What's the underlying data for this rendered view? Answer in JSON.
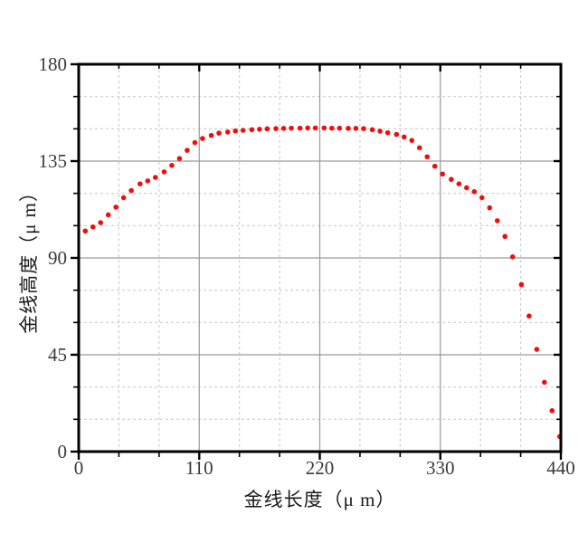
{
  "figure": {
    "background": "#ffffff",
    "plot_frame_color": "#000000"
  },
  "chart_data": {
    "type": "scatter",
    "title": "",
    "xlabel": "金线长度（μ m）",
    "ylabel": "金线高度（μ m）",
    "xlim": [
      0,
      440
    ],
    "ylim": [
      0,
      180
    ],
    "xticks": [
      0,
      110,
      220,
      330,
      440
    ],
    "yticks": [
      0,
      45,
      90,
      135,
      180
    ],
    "minor_divisions_per_major": 3,
    "grid": {
      "major_style": "solid",
      "major_color": "#9b9b9b",
      "minor_style": "dashed",
      "minor_color": "#cccccc"
    },
    "legend_position": "none",
    "marker": {
      "shape": "circle",
      "color": "#f20d0d",
      "radius_px": 2.8
    },
    "tick_label_color": "#3a3a3a",
    "x": [
      6,
      13,
      20,
      27,
      34,
      41,
      48,
      56,
      63,
      70,
      78,
      85,
      92,
      99,
      106,
      113,
      121,
      128,
      136,
      143,
      150,
      158,
      165,
      172,
      180,
      187,
      194,
      202,
      209,
      216,
      224,
      231,
      238,
      246,
      253,
      260,
      268,
      275,
      282,
      290,
      297,
      304,
      311,
      318,
      325,
      332,
      340,
      347,
      354,
      361,
      368,
      375,
      382,
      389,
      396,
      404,
      411,
      418,
      425,
      432,
      439
    ],
    "y": [
      102.5,
      104.4,
      106.4,
      110,
      113.6,
      118,
      121.3,
      124.4,
      125.8,
      127.4,
      130,
      133,
      136.2,
      140,
      143.6,
      145.5,
      146.9,
      148,
      148.5,
      149,
      149.3,
      149.6,
      149.8,
      150,
      150.1,
      150.2,
      150.3,
      150.3,
      150.4,
      150.4,
      150.4,
      150.3,
      150.3,
      150.2,
      150.2,
      150.1,
      149.6,
      148.9,
      148.2,
      147.4,
      146.2,
      144.6,
      141.2,
      137,
      132.6,
      129,
      126.5,
      124.4,
      122.6,
      120.8,
      118,
      113.3,
      107.3,
      100,
      90.5,
      77.6,
      63,
      47.5,
      32.2,
      19,
      7
    ]
  }
}
